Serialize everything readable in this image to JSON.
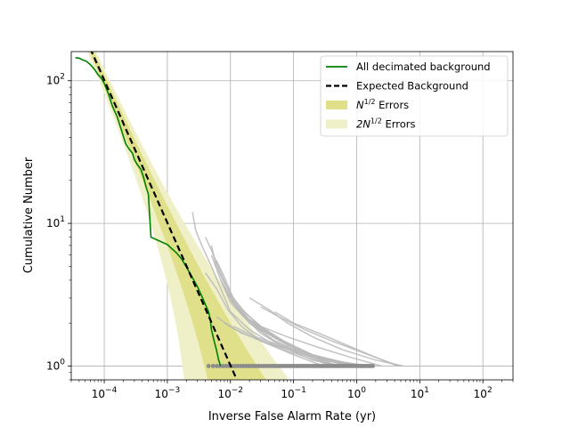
{
  "chart_data": {
    "type": "line",
    "xlabel": "Inverse False Alarm Rate (yr)",
    "ylabel": "Cumulative Number",
    "xscale": "log",
    "yscale": "log",
    "xlim": [
      3e-05,
      300
    ],
    "ylim": [
      0.8,
      160
    ],
    "grid": true,
    "legend_placement": "top-right",
    "x_ticks": [
      {
        "value": 0.0001,
        "base": "10",
        "exp": "−4"
      },
      {
        "value": 0.001,
        "base": "10",
        "exp": "−3"
      },
      {
        "value": 0.01,
        "base": "10",
        "exp": "−2"
      },
      {
        "value": 0.1,
        "base": "10",
        "exp": "−1"
      },
      {
        "value": 1,
        "base": "10",
        "exp": "0"
      },
      {
        "value": 10,
        "base": "10",
        "exp": "1"
      },
      {
        "value": 100,
        "base": "10",
        "exp": "2"
      }
    ],
    "y_ticks": [
      {
        "value": 1,
        "base": "10",
        "exp": "0"
      },
      {
        "value": 10,
        "base": "10",
        "exp": "1"
      },
      {
        "value": 100,
        "base": "10",
        "exp": "2"
      }
    ],
    "legend": [
      {
        "key": "bg",
        "label": "All decimated background",
        "style": "line",
        "color": "#008000"
      },
      {
        "key": "exp",
        "label": "Expected Background",
        "style": "dashed",
        "color": "#000000"
      },
      {
        "key": "n1",
        "label_base": "N",
        "label_sup": "1/2",
        "label_rest": " Errors",
        "style": "patch",
        "color": "#e0e08a"
      },
      {
        "key": "n2",
        "label_base": "2N",
        "label_sup": "1/2",
        "label_rest": " Errors",
        "style": "patch",
        "color": "#f0f0c8"
      }
    ],
    "series": [
      {
        "name": "All decimated background",
        "color": "#008000",
        "points": [
          [
            3.5e-05,
            145
          ],
          [
            4e-05,
            144
          ],
          [
            4.5e-05,
            140
          ],
          [
            5.2e-05,
            137
          ],
          [
            6e-05,
            130
          ],
          [
            7e-05,
            120
          ],
          [
            8e-05,
            110
          ],
          [
            9e-05,
            104
          ],
          [
            0.0001,
            96
          ],
          [
            0.000115,
            82
          ],
          [
            0.000135,
            66
          ],
          [
            0.00016,
            56
          ],
          [
            0.00019,
            44
          ],
          [
            0.00022,
            36
          ],
          [
            0.00025,
            33
          ],
          [
            0.00028,
            31
          ],
          [
            0.0003,
            28
          ],
          [
            0.00033,
            26
          ],
          [
            0.00038,
            24
          ],
          [
            0.00042,
            21
          ],
          [
            0.00046,
            18
          ],
          [
            0.0005,
            16
          ],
          [
            0.00052,
            12
          ],
          [
            0.00055,
            8
          ],
          [
            0.001,
            7.1
          ],
          [
            0.0014,
            6.2
          ],
          [
            0.0017,
            5.6
          ],
          [
            0.0022,
            4.6
          ],
          [
            0.003,
            3.6
          ],
          [
            0.0035,
            3.1
          ],
          [
            0.004,
            2.7
          ],
          [
            0.0045,
            2.4
          ],
          [
            0.0048,
            2.1
          ],
          [
            0.005,
            1.8
          ],
          [
            0.0055,
            1.5
          ],
          [
            0.006,
            1.3
          ],
          [
            0.0065,
            1.1
          ],
          [
            0.007,
            1.0
          ]
        ]
      },
      {
        "name": "Expected Background",
        "color": "#000000",
        "dashed": true,
        "x_range": [
          6e-05,
          0.013
        ],
        "formula": "N = 0.0101 / x"
      }
    ],
    "bands": [
      {
        "name": "2N^(1/2) Errors",
        "sigma": 2,
        "color": "#f0f0c8"
      },
      {
        "name": "N^(1/2) Errors",
        "sigma": 1,
        "color": "#e0e08a"
      }
    ],
    "background_trials": [
      [
        [
          0.0025,
          12
        ],
        [
          0.0028,
          9
        ],
        [
          0.0035,
          7
        ],
        [
          0.005,
          5
        ],
        [
          0.007,
          3.5
        ],
        [
          0.01,
          2.4
        ],
        [
          0.02,
          1.8
        ],
        [
          0.05,
          1.4
        ],
        [
          0.15,
          1.2
        ],
        [
          0.4,
          1.1
        ],
        [
          1.2,
          1.0
        ]
      ],
      [
        [
          0.004,
          8
        ],
        [
          0.005,
          6.5
        ],
        [
          0.007,
          4.5
        ],
        [
          0.01,
          3.2
        ],
        [
          0.015,
          2.5
        ],
        [
          0.03,
          1.9
        ],
        [
          0.07,
          1.5
        ],
        [
          0.2,
          1.2
        ],
        [
          0.6,
          1.05
        ],
        [
          1.8,
          1.0
        ]
      ],
      [
        [
          0.005,
          7
        ],
        [
          0.006,
          5
        ],
        [
          0.008,
          3.8
        ],
        [
          0.012,
          2.8
        ],
        [
          0.02,
          2.1
        ],
        [
          0.05,
          1.6
        ],
        [
          0.12,
          1.3
        ],
        [
          0.35,
          1.1
        ],
        [
          1.0,
          1.0
        ]
      ],
      [
        [
          0.006,
          5.5
        ],
        [
          0.008,
          4.2
        ],
        [
          0.011,
          3
        ],
        [
          0.018,
          2.3
        ],
        [
          0.035,
          1.8
        ],
        [
          0.08,
          1.4
        ],
        [
          0.25,
          1.15
        ],
        [
          0.8,
          1.0
        ]
      ],
      [
        [
          0.005,
          6
        ],
        [
          0.007,
          4
        ],
        [
          0.01,
          2.8
        ],
        [
          0.02,
          2.0
        ],
        [
          0.05,
          1.5
        ],
        [
          0.15,
          1.2
        ],
        [
          0.5,
          1.0
        ]
      ],
      [
        [
          0.004,
          4.5
        ],
        [
          0.006,
          3.5
        ],
        [
          0.009,
          2.5
        ],
        [
          0.015,
          1.9
        ],
        [
          0.03,
          1.5
        ],
        [
          0.1,
          1.2
        ],
        [
          0.3,
          1.0
        ]
      ],
      [
        [
          0.007,
          4
        ],
        [
          0.01,
          3
        ],
        [
          0.015,
          2.3
        ],
        [
          0.03,
          1.7
        ],
        [
          0.07,
          1.35
        ],
        [
          0.2,
          1.1
        ],
        [
          0.6,
          1.0
        ]
      ],
      [
        [
          0.008,
          3.6
        ],
        [
          0.012,
          2.7
        ],
        [
          0.02,
          2.0
        ],
        [
          0.05,
          1.5
        ],
        [
          0.15,
          1.2
        ],
        [
          0.45,
          1.0
        ]
      ],
      [
        [
          0.009,
          3.2
        ],
        [
          0.014,
          2.4
        ],
        [
          0.03,
          1.8
        ],
        [
          0.08,
          1.4
        ],
        [
          0.25,
          1.15
        ],
        [
          0.7,
          1.0
        ]
      ],
      [
        [
          0.01,
          2.9
        ],
        [
          0.02,
          2.1
        ],
        [
          0.04,
          1.7
        ],
        [
          0.1,
          1.35
        ],
        [
          0.3,
          1.1
        ],
        [
          0.9,
          1.0
        ]
      ],
      [
        [
          0.012,
          2.6
        ],
        [
          0.025,
          1.9
        ],
        [
          0.06,
          1.5
        ],
        [
          0.18,
          1.2
        ],
        [
          0.5,
          1.0
        ]
      ],
      [
        [
          0.006,
          2.2
        ],
        [
          0.012,
          1.8
        ],
        [
          0.03,
          1.5
        ],
        [
          0.09,
          1.25
        ],
        [
          0.3,
          1.05
        ],
        [
          0.8,
          1.0
        ]
      ],
      [
        [
          0.02,
          3.0
        ],
        [
          0.04,
          2.5
        ],
        [
          0.08,
          2.0
        ],
        [
          0.2,
          1.6
        ],
        [
          0.6,
          1.3
        ],
        [
          2,
          1.1
        ],
        [
          5.5,
          1.0
        ]
      ],
      [
        [
          0.03,
          2.6
        ],
        [
          0.06,
          2.2
        ],
        [
          0.15,
          1.8
        ],
        [
          0.4,
          1.5
        ],
        [
          1.2,
          1.25
        ],
        [
          3.5,
          1.05
        ],
        [
          5,
          1.0
        ]
      ],
      [
        [
          0.015,
          2.3
        ],
        [
          0.03,
          1.9
        ],
        [
          0.08,
          1.6
        ],
        [
          0.25,
          1.35
        ],
        [
          0.8,
          1.15
        ],
        [
          2.5,
          1.0
        ]
      ],
      [
        [
          0.05,
          2.4
        ],
        [
          0.1,
          2.0
        ],
        [
          0.25,
          1.7
        ],
        [
          0.7,
          1.4
        ],
        [
          2,
          1.15
        ],
        [
          4.5,
          1.0
        ]
      ],
      [
        [
          0.008,
          2.0
        ],
        [
          0.015,
          1.7
        ],
        [
          0.04,
          1.45
        ],
        [
          0.12,
          1.25
        ],
        [
          0.4,
          1.1
        ],
        [
          1.5,
          1.0
        ]
      ],
      [
        [
          0.011,
          1.9
        ],
        [
          0.025,
          1.6
        ],
        [
          0.06,
          1.4
        ],
        [
          0.2,
          1.2
        ],
        [
          0.7,
          1.05
        ],
        [
          1.9,
          1.0
        ]
      ]
    ],
    "background_points_x_range": [
      0.0045,
      1.8
    ],
    "colors": {
      "trial_lines": "#b8b8b8",
      "trial_points": "#8c8c8c",
      "grid": "#b0b0b0"
    }
  }
}
